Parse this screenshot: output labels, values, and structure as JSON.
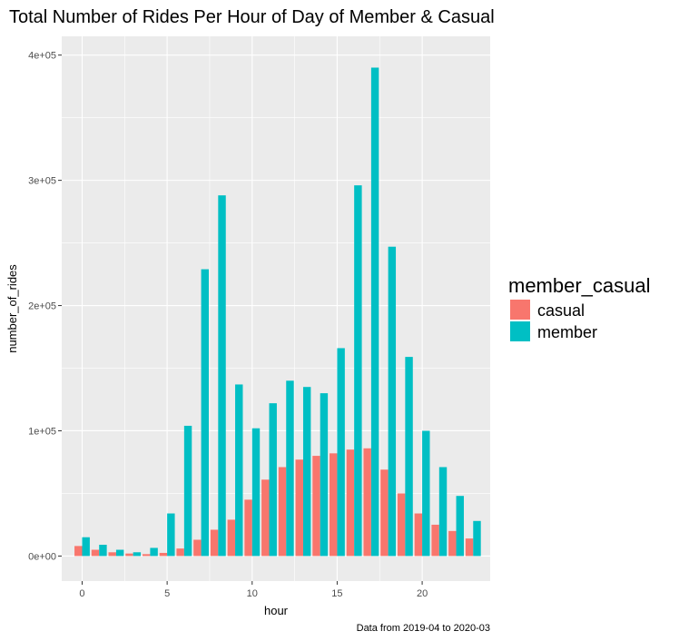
{
  "chart_data": {
    "type": "bar",
    "title": "Total Number of Rides Per Hour of Day of Member & Casual",
    "xlabel": "hour",
    "ylabel": "number_of_rides",
    "caption": "Data from 2019-04 to 2020-03",
    "x": [
      0,
      1,
      2,
      3,
      4,
      5,
      6,
      7,
      8,
      9,
      10,
      11,
      12,
      13,
      14,
      15,
      16,
      17,
      18,
      19,
      20,
      21,
      22,
      23
    ],
    "xlim": [
      -1.2,
      24.0
    ],
    "ylim": [
      -20000,
      415000
    ],
    "x_ticks": [
      0,
      5,
      10,
      15,
      20
    ],
    "x_tick_labels": [
      "0",
      "5",
      "10",
      "15",
      "20"
    ],
    "y_ticks": [
      0,
      100000,
      200000,
      300000,
      400000
    ],
    "y_tick_labels": [
      "0e+00",
      "1e+05",
      "2e+05",
      "3e+05",
      "4e+05"
    ],
    "grid": true,
    "legend": {
      "title": "member_casual",
      "position": "right"
    },
    "series": [
      {
        "name": "casual",
        "color": "#F8766D",
        "values": [
          8000,
          5000,
          3000,
          2000,
          1500,
          2500,
          6000,
          13000,
          21000,
          29000,
          45000,
          61000,
          71000,
          77000,
          80000,
          82000,
          85000,
          86000,
          69000,
          50000,
          34000,
          25000,
          20000,
          14000
        ]
      },
      {
        "name": "member",
        "color": "#00BFC4",
        "values": [
          15000,
          9000,
          5000,
          3000,
          6500,
          34000,
          104000,
          229000,
          288000,
          137000,
          102000,
          122000,
          140000,
          135000,
          130000,
          166000,
          296000,
          390000,
          247000,
          159000,
          100000,
          71000,
          48000,
          28000
        ]
      }
    ]
  }
}
